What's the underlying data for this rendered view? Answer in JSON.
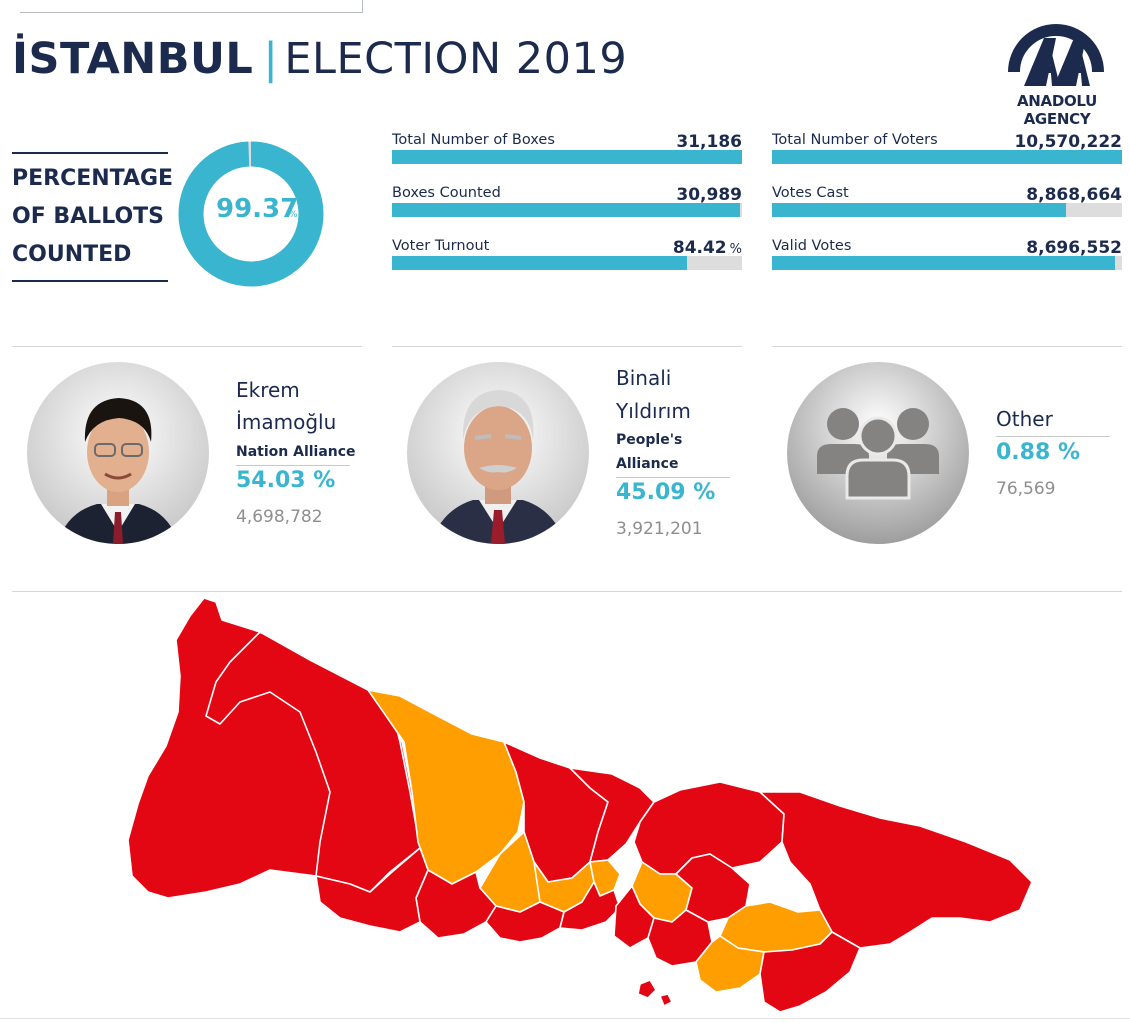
{
  "header": {
    "city": "İSTANBUL",
    "separator": "|",
    "subtitle": "ELECTION 2019",
    "logo_text": "ANADOLU AGENCY"
  },
  "ballots": {
    "label_line1": "PERCENTAGE",
    "label_line2": "OF BALLOTS",
    "label_line3": "COUNTED",
    "value": "99.37",
    "unit": "%",
    "fraction": 0.9937
  },
  "stats": [
    {
      "label": "Total Number of Boxes",
      "value": "31,186",
      "unit": "",
      "fill": 1.0
    },
    {
      "label": "Boxes Counted",
      "value": "30,989",
      "unit": "",
      "fill": 0.9937
    },
    {
      "label": "Voter Turnout",
      "value": "84.42",
      "unit": "%",
      "fill": 0.8442
    },
    {
      "label": "Total Number of Voters",
      "value": "10,570,222",
      "unit": "",
      "fill": 1.0
    },
    {
      "label": "Votes Cast",
      "value": "8,868,664",
      "unit": "",
      "fill": 0.839
    },
    {
      "label": "Valid Votes",
      "value": "8,696,552",
      "unit": "",
      "fill": 0.9806
    }
  ],
  "candidates": [
    {
      "name_line1": "Ekrem",
      "name_line2": "İmamoğlu",
      "party_line1": "Nation Alliance",
      "party_line2": "",
      "percent": "54.03 %",
      "votes": "4,698,782"
    },
    {
      "name_line1": "Binali",
      "name_line2": "Yıldırım",
      "party_line1": "People's",
      "party_line2": "Alliance",
      "percent": "45.09 %",
      "votes": "3,921,201"
    },
    {
      "name_line1": "Other",
      "name_line2": "",
      "party_line1": "",
      "party_line2": "",
      "percent": "0.88 %",
      "votes": "76,569"
    }
  ],
  "colors": {
    "accent": "#3ab5cf",
    "navy": "#1c2b4d",
    "imamoglu_map": "#e30613",
    "yildirim_map": "#ff9e00"
  },
  "chart_data": {
    "type": "table",
    "series": [
      {
        "name": "Ekrem İmamoğlu",
        "values": [
          54.03
        ]
      },
      {
        "name": "Binali Yıldırım",
        "values": [
          45.09
        ]
      },
      {
        "name": "Other",
        "values": [
          0.88
        ]
      }
    ]
  }
}
